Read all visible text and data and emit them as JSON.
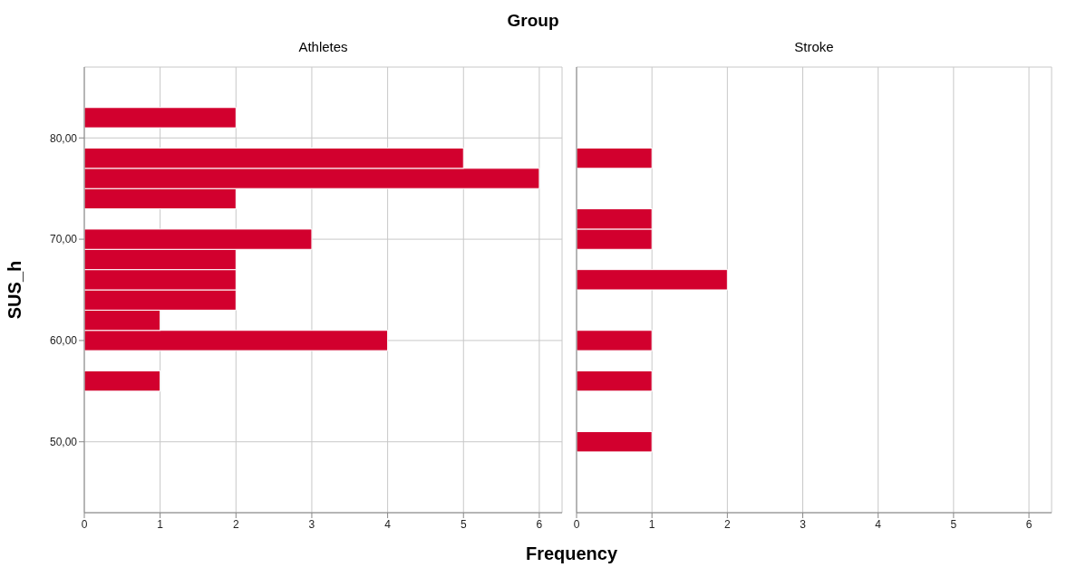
{
  "chart_data": [
    {
      "type": "histogram",
      "orientation": "horizontal",
      "title": "Group",
      "subtitle": "Athletes",
      "xlabel": "Frequency",
      "ylabel": "SUS_h",
      "color": "#d2002e",
      "grid": true,
      "bins": [
        49,
        51,
        53,
        55,
        57,
        59,
        61,
        63,
        65,
        67,
        69,
        71,
        73,
        75,
        77,
        79,
        81,
        83
      ],
      "values": [
        0,
        0,
        0,
        1,
        0,
        4,
        1,
        2,
        2,
        2,
        3,
        0,
        2,
        6,
        5,
        0,
        2
      ],
      "xlim": [
        0,
        6.3
      ],
      "xticks": [
        0,
        1,
        2,
        3,
        4,
        5,
        6
      ],
      "ylim": [
        43,
        87
      ],
      "yticks": [
        {
          "value": 50,
          "label": "50,00"
        },
        {
          "value": 60,
          "label": "60,00"
        },
        {
          "value": 70,
          "label": "70,00"
        },
        {
          "value": 80,
          "label": "80,00"
        }
      ]
    },
    {
      "type": "histogram",
      "orientation": "horizontal",
      "subtitle": "Stroke",
      "color": "#d2002e",
      "grid": true,
      "tick_labels": "x",
      "bins": [
        49,
        51,
        53,
        55,
        57,
        59,
        61,
        63,
        65,
        67,
        69,
        71,
        73,
        75,
        77,
        79,
        81,
        83
      ],
      "values": [
        1,
        0,
        0,
        1,
        0,
        1,
        0,
        0,
        2,
        0,
        1,
        1,
        0,
        0,
        1,
        0,
        0
      ],
      "xlim": [
        0,
        6.3
      ],
      "xticks": [
        0,
        1,
        2,
        3,
        4,
        5,
        6
      ],
      "ylim": [
        43,
        87
      ],
      "yticks": [
        {
          "value": 50,
          "label": null
        },
        {
          "value": 60,
          "label": null
        },
        {
          "value": 70,
          "label": null
        },
        {
          "value": 80,
          "label": null
        }
      ]
    }
  ]
}
